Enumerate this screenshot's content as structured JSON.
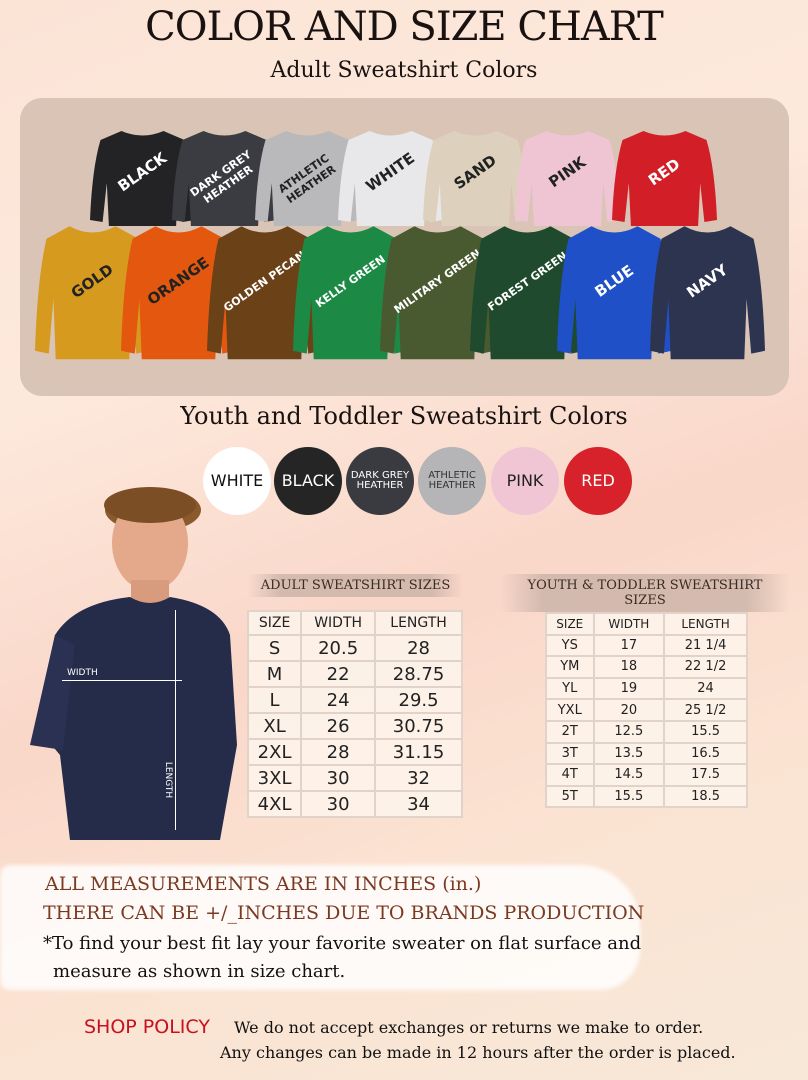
{
  "title": "COLOR AND SIZE CHART",
  "adult_colors_heading": "Adult Sweatshirt Colors",
  "adult_colors": [
    {
      "name": "BLACK",
      "color": "#232325",
      "text": "#ffffff"
    },
    {
      "name": "DARK GREY HEATHER",
      "color": "#3b3c42",
      "text": "#ffffff"
    },
    {
      "name": "ATHLETIC HEATHER",
      "color": "#b9b9bb",
      "text": "#222222"
    },
    {
      "name": "WHITE",
      "color": "#e8e8eb",
      "text": "#222222"
    },
    {
      "name": "SAND",
      "color": "#ddd1bd",
      "text": "#222222"
    },
    {
      "name": "PINK",
      "color": "#efc5d3",
      "text": "#222222"
    },
    {
      "name": "RED",
      "color": "#d21f27",
      "text": "#ffffff"
    },
    {
      "name": "GOLD",
      "color": "#d69a1f",
      "text": "#222222"
    },
    {
      "name": "ORANGE",
      "color": "#e3570e",
      "text": "#222222"
    },
    {
      "name": "GOLDEN PECAN",
      "color": "#6b4218",
      "text": "#ffffff"
    },
    {
      "name": "KELLY GREEN",
      "color": "#1c8a45",
      "text": "#ffffff"
    },
    {
      "name": "MILITARY GREEN",
      "color": "#4a5a30",
      "text": "#ffffff"
    },
    {
      "name": "FOREST GREEN",
      "color": "#1f4a2d",
      "text": "#ffffff"
    },
    {
      "name": "BLUE",
      "color": "#1f50c8",
      "text": "#ffffff"
    },
    {
      "name": "NAVY",
      "color": "#2d3450",
      "text": "#ffffff"
    }
  ],
  "youth_colors_heading": "Youth and Toddler Sweatshirt Colors",
  "youth_colors": [
    {
      "name": "WHITE",
      "color": "#ffffff",
      "text": "#111111"
    },
    {
      "name": "BLACK",
      "color": "#252525",
      "text": "#ffffff"
    },
    {
      "name": "DARK GREY HEATHER",
      "color": "#3a3b40",
      "text": "#ffffff"
    },
    {
      "name": "ATHLETIC HEATHER",
      "color": "#b5b5b7",
      "text": "#333333"
    },
    {
      "name": "PINK",
      "color": "#f1c6d4",
      "text": "#222222"
    },
    {
      "name": "RED",
      "color": "#d7222b",
      "text": "#ffffff"
    }
  ],
  "diagram": {
    "width_label": "WIDTH",
    "length_label": "LENGTH"
  },
  "adult_sizes": {
    "heading": "ADULT SWEATSHIRT SIZES",
    "columns": [
      "SIZE",
      "WIDTH",
      "LENGTH"
    ],
    "rows": [
      [
        "S",
        "20.5",
        "28"
      ],
      [
        "M",
        "22",
        "28.75"
      ],
      [
        "L",
        "24",
        "29.5"
      ],
      [
        "XL",
        "26",
        "30.75"
      ],
      [
        "2XL",
        "28",
        "31.15"
      ],
      [
        "3XL",
        "30",
        "32"
      ],
      [
        "4XL",
        "30",
        "34"
      ]
    ]
  },
  "youth_sizes": {
    "heading": "YOUTH & TODDLER SWEATSHIRT SIZES",
    "columns": [
      "SIZE",
      "WIDTH",
      "LENGTH"
    ],
    "rows": [
      [
        "YS",
        "17",
        "21 1/4"
      ],
      [
        "YM",
        "18",
        "22 1/2"
      ],
      [
        "YL",
        "19",
        "24"
      ],
      [
        "YXL",
        "20",
        "25 1/2"
      ],
      [
        "2T",
        "12.5",
        "15.5"
      ],
      [
        "3T",
        "13.5",
        "16.5"
      ],
      [
        "4T",
        "14.5",
        "17.5"
      ],
      [
        "5T",
        "15.5",
        "18.5"
      ]
    ]
  },
  "notes": {
    "line1": "ALL MEASUREMENTS ARE IN INCHES (in.)",
    "line2": "THERE CAN BE +/_INCHES DUE TO BRANDS PRODUCTION",
    "line3": "*To find your best fit lay your favorite sweater on flat surface and",
    "line4": "measure as shown in size chart."
  },
  "policy": {
    "label": "SHOP POLICY",
    "line1": "We do not accept exchanges or returns we make to order.",
    "line2": "Any changes can be made in 12 hours after the order is placed.",
    "accent": "#c8101e"
  }
}
